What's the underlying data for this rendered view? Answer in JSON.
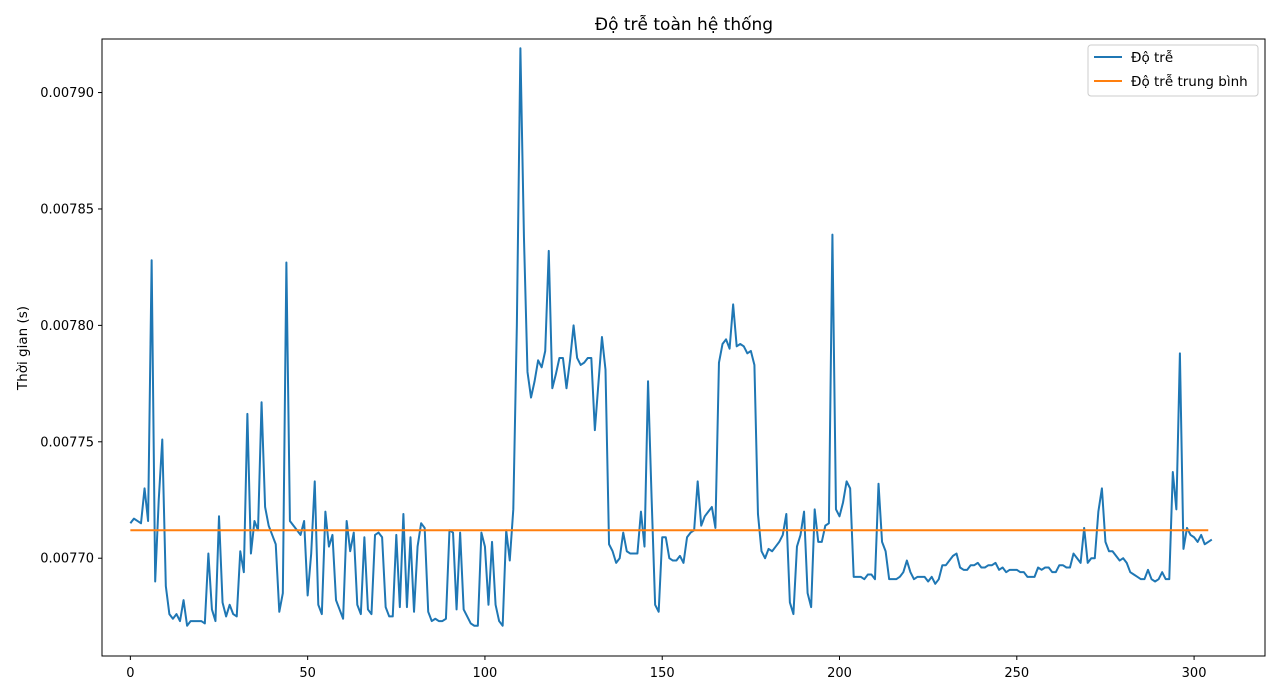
{
  "chart_data": {
    "type": "line",
    "title": "Độ trễ toàn hệ thống",
    "xlabel": "",
    "ylabel": "Thời gian (s)",
    "xlim": [
      -8,
      320
    ],
    "ylim": [
      0.007658,
      0.007923
    ],
    "xticks": [
      0,
      50,
      100,
      150,
      200,
      250,
      300
    ],
    "yticks": [
      0.0077,
      0.00775,
      0.0078,
      0.00785,
      0.0079
    ],
    "ytick_decimals": 5,
    "legend_position": "upper right",
    "grid": false,
    "series": [
      {
        "name": "Độ trễ",
        "color": "#1f77b4",
        "x_start": 0,
        "values": [
          0.007715,
          0.007717,
          0.007716,
          0.007715,
          0.00773,
          0.007716,
          0.007828,
          0.00769,
          0.007725,
          0.007751,
          0.007688,
          0.007676,
          0.007674,
          0.007676,
          0.007673,
          0.007682,
          0.007671,
          0.007673,
          0.007673,
          0.007673,
          0.007673,
          0.007672,
          0.007702,
          0.007678,
          0.007673,
          0.007718,
          0.007681,
          0.007675,
          0.00768,
          0.007676,
          0.007675,
          0.007703,
          0.007694,
          0.007762,
          0.007702,
          0.007716,
          0.007712,
          0.007767,
          0.007722,
          0.007714,
          0.00771,
          0.007706,
          0.007677,
          0.007685,
          0.007827,
          0.007716,
          0.007714,
          0.007712,
          0.00771,
          0.007716,
          0.007684,
          0.007702,
          0.007733,
          0.00768,
          0.007676,
          0.00772,
          0.007705,
          0.00771,
          0.007682,
          0.007678,
          0.007674,
          0.007716,
          0.007703,
          0.007711,
          0.00768,
          0.007676,
          0.007709,
          0.007678,
          0.007676,
          0.00771,
          0.007711,
          0.007709,
          0.007679,
          0.007675,
          0.007675,
          0.00771,
          0.007679,
          0.007719,
          0.007679,
          0.007709,
          0.007677,
          0.007705,
          0.007715,
          0.007713,
          0.007677,
          0.007673,
          0.007674,
          0.007673,
          0.007673,
          0.007674,
          0.007712,
          0.007711,
          0.007678,
          0.007711,
          0.007678,
          0.007675,
          0.007672,
          0.007671,
          0.007671,
          0.007711,
          0.007705,
          0.00768,
          0.007707,
          0.00768,
          0.007673,
          0.007671,
          0.007712,
          0.007699,
          0.007721,
          0.0078,
          0.007919,
          0.007838,
          0.00778,
          0.007769,
          0.007776,
          0.007785,
          0.007782,
          0.007789,
          0.007832,
          0.007773,
          0.007779,
          0.007786,
          0.007786,
          0.007773,
          0.007785,
          0.0078,
          0.007786,
          0.007783,
          0.007784,
          0.007786,
          0.007786,
          0.007755,
          0.007775,
          0.007795,
          0.007781,
          0.007706,
          0.007703,
          0.007698,
          0.0077,
          0.007711,
          0.007703,
          0.007702,
          0.007702,
          0.007702,
          0.00772,
          0.007705,
          0.007776,
          0.007726,
          0.00768,
          0.007677,
          0.007709,
          0.007709,
          0.0077,
          0.007699,
          0.007699,
          0.007701,
          0.007698,
          0.007709,
          0.007711,
          0.007712,
          0.007733,
          0.007714,
          0.007718,
          0.00772,
          0.007722,
          0.007713,
          0.007784,
          0.007792,
          0.007794,
          0.00779,
          0.007809,
          0.007791,
          0.007792,
          0.007791,
          0.007788,
          0.007789,
          0.007783,
          0.007719,
          0.007703,
          0.0077,
          0.007704,
          0.007703,
          0.007705,
          0.007707,
          0.00771,
          0.007719,
          0.007681,
          0.007676,
          0.007705,
          0.00771,
          0.00772,
          0.007685,
          0.007679,
          0.007721,
          0.007707,
          0.007707,
          0.007714,
          0.007715,
          0.007839,
          0.007721,
          0.007718,
          0.007724,
          0.007733,
          0.00773,
          0.007692,
          0.007692,
          0.007692,
          0.007691,
          0.007693,
          0.007693,
          0.007691,
          0.007732,
          0.007707,
          0.007703,
          0.007691,
          0.007691,
          0.007691,
          0.007692,
          0.007694,
          0.007699,
          0.007694,
          0.007691,
          0.007692,
          0.007692,
          0.007692,
          0.00769,
          0.007692,
          0.007689,
          0.007691,
          0.007697,
          0.007697,
          0.007699,
          0.007701,
          0.007702,
          0.007696,
          0.007695,
          0.007695,
          0.007697,
          0.007697,
          0.007698,
          0.007696,
          0.007696,
          0.007697,
          0.007697,
          0.007698,
          0.007695,
          0.007696,
          0.007694,
          0.007695,
          0.007695,
          0.007695,
          0.007694,
          0.007694,
          0.007692,
          0.007692,
          0.007692,
          0.007696,
          0.007695,
          0.007696,
          0.007696,
          0.007694,
          0.007694,
          0.007697,
          0.007697,
          0.007696,
          0.007696,
          0.007702,
          0.0077,
          0.007698,
          0.007713,
          0.007698,
          0.0077,
          0.0077,
          0.00772,
          0.00773,
          0.007707,
          0.007703,
          0.007703,
          0.007701,
          0.007699,
          0.0077,
          0.007698,
          0.007694,
          0.007693,
          0.007692,
          0.007691,
          0.007691,
          0.007695,
          0.007691,
          0.00769,
          0.007691,
          0.007694,
          0.007691,
          0.007691,
          0.007737,
          0.007721,
          0.007788,
          0.007704,
          0.007713,
          0.00771,
          0.007709,
          0.007707,
          0.00771,
          0.007706,
          0.007707,
          0.007708
        ]
      },
      {
        "name": "Độ trễ trung bình",
        "color": "#ff7f0e",
        "x_range": [
          0,
          304
        ],
        "value": 0.007712
      }
    ]
  }
}
